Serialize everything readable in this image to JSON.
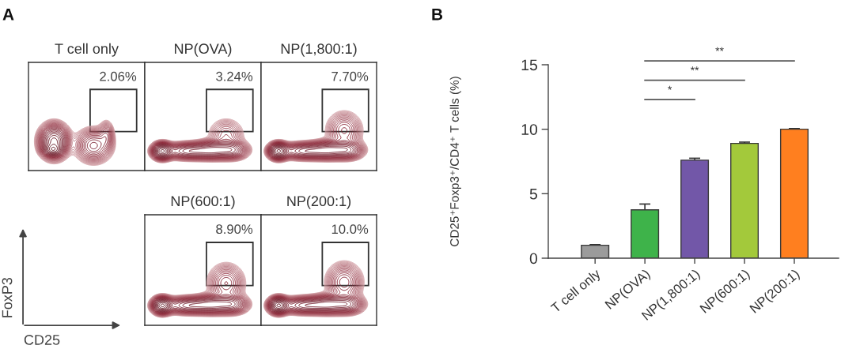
{
  "chart_data": [
    {
      "type": "other",
      "title": "A",
      "xlabel": "CD25",
      "ylabel": "FoxP3"
    },
    {
      "type": "other",
      "title": "T cell only",
      "annotations": [
        "2.06%"
      ]
    },
    {
      "type": "other",
      "title": "NP(OVA)",
      "annotations": [
        "3.24%"
      ]
    },
    {
      "type": "other",
      "title": "NP(1,800:1)",
      "annotations": [
        "7.70%"
      ]
    },
    {
      "type": "other",
      "title": "NP(600:1)",
      "annotations": [
        "8.90%"
      ]
    },
    {
      "type": "other",
      "title": "NP(200:1)",
      "annotations": [
        "10.0%"
      ]
    },
    {
      "type": "bar",
      "title": "B",
      "categories": [
        "T cell only",
        "NP(OVA)",
        "NP(1,800:1)",
        "NP(600:1)",
        "NP(200:1)"
      ],
      "values": [
        1.0,
        3.75,
        7.6,
        8.9,
        10.0
      ],
      "colors": [
        "#9b9b9b",
        "#3eb34a",
        "#7257a8",
        "#a3c93b",
        "#ff7f1f"
      ],
      "errors": [
        0.05,
        0.45,
        0.15,
        0.1,
        0.05
      ],
      "ylim": [
        0,
        15
      ],
      "yticks": [
        0,
        5,
        10,
        15
      ],
      "ylabel": "CD25⁺Foxp3⁺/CD4⁺ T cells (%)",
      "annotations": [
        "*",
        "**",
        "**"
      ]
    }
  ]
}
